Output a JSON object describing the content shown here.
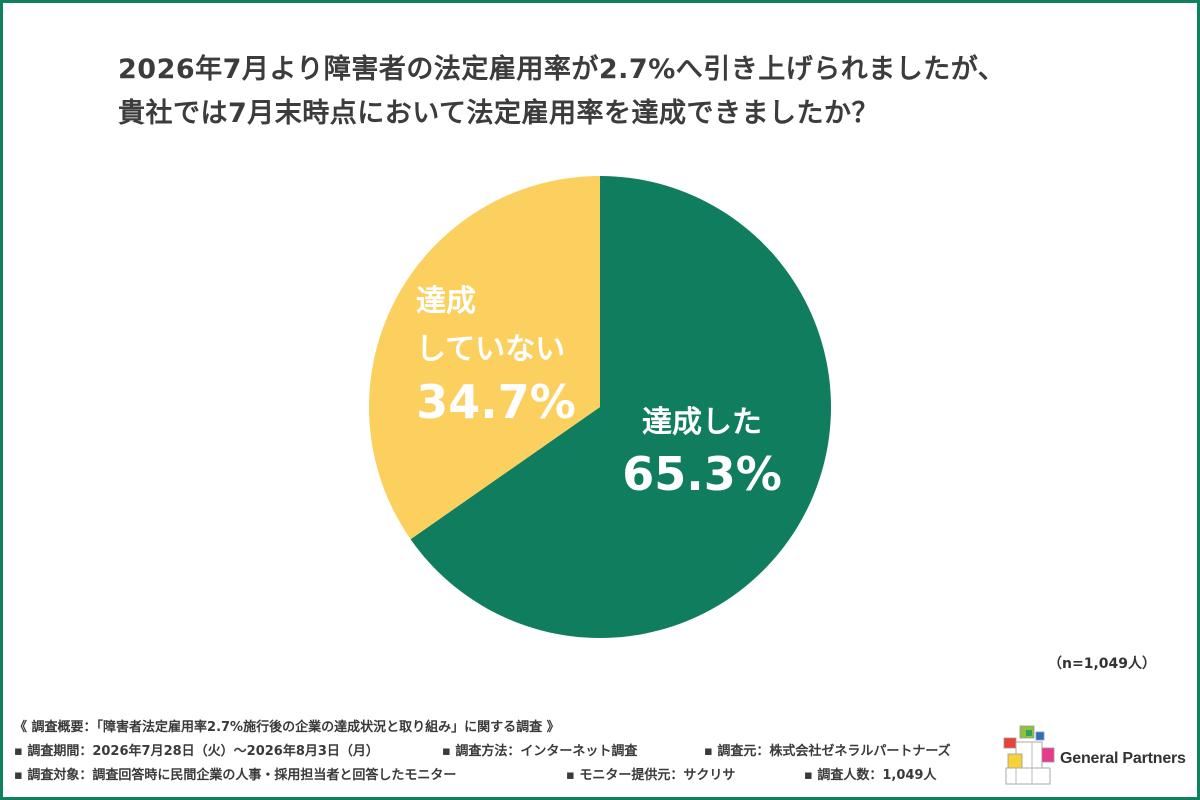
{
  "title": {
    "line1": "2026年7月より障害者の法定雇用率が2.7%へ引き上げられましたが、",
    "line2": "貴社では7月末時点において法定雇用率を達成できましたか？"
  },
  "chart_data": {
    "type": "pie",
    "title": "2026年7月より障害者の法定雇用率が2.7%へ引き上げられましたが、貴社では7月末時点において法定雇用率を達成できましたか？",
    "slices": [
      {
        "label_lines": [
          "達成した"
        ],
        "value": 65.3,
        "value_text": "65.3%",
        "color": "#0f7d5e"
      },
      {
        "label_lines": [
          "達成",
          "していない"
        ],
        "value": 34.7,
        "value_text": "34.7%",
        "color": "#fbd05f"
      }
    ],
    "sample_note": "（n=1,049人）"
  },
  "footer": {
    "summary": "《 調査概要：「障害者法定雇用率2.7%施行後の企業の達成状況と取り組み」に関する調査 》",
    "items_row1": [
      "▪ 調査期間：2026年7月28日（火）～2026年8月3日（月）",
      "▪ 調査方法：インターネット調査",
      "▪ 調査元：株式会社ゼネラルパートナーズ"
    ],
    "items_row2": [
      "▪ 調査対象：調査回答時に民間企業の人事・採用担当者と回答したモニター",
      "▪ モニター提供元：サクリサ",
      "▪ 調査人数：1,049人"
    ]
  },
  "logo": {
    "text": "General Partners",
    "colors": [
      "#2fa35a",
      "#e8413a",
      "#f5d23a",
      "#2b6fc2",
      "#e63a8a",
      "#8fc13a"
    ]
  },
  "colors": {
    "border": "#11805e",
    "green": "#0f7d5e",
    "yellow": "#fbd05f"
  }
}
